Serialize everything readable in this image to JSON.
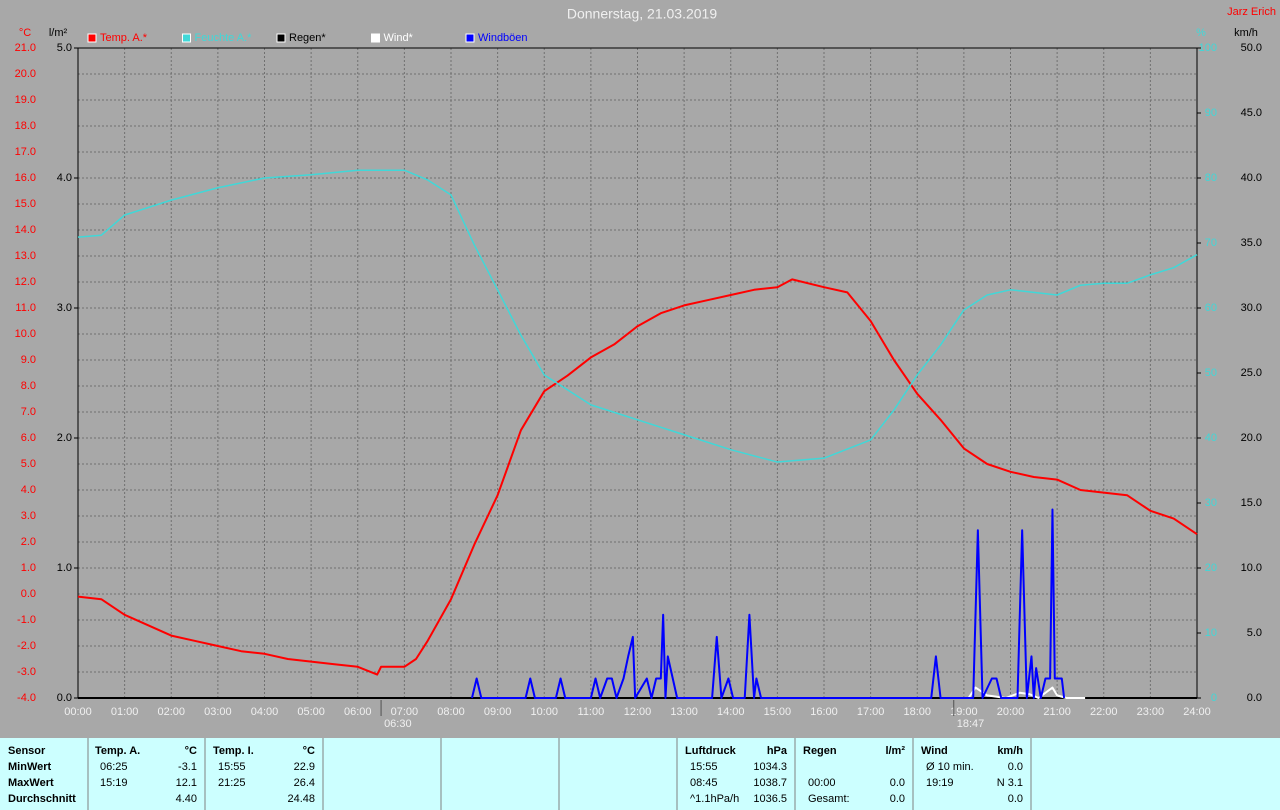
{
  "chart_data": {
    "type": "line",
    "title": "Donnerstag, 21.03.2019",
    "author": "Jarz Erich",
    "y_label": "°C",
    "y2_label": "l/m²",
    "y3_label": "%",
    "y4_label": "km/h",
    "xlim": [
      0,
      24
    ],
    "xticks": [
      {
        "value": 0,
        "label": "00:00"
      },
      {
        "value": 1,
        "label": "01:00"
      },
      {
        "value": 2,
        "label": "02:00"
      },
      {
        "value": 3,
        "label": "03:00"
      },
      {
        "value": 4,
        "label": "04:00"
      },
      {
        "value": 5,
        "label": "05:00"
      },
      {
        "value": 6,
        "label": "06:00"
      },
      {
        "value": 7,
        "label": "07:00"
      },
      {
        "value": 8,
        "label": "08:00"
      },
      {
        "value": 9,
        "label": "09:00"
      },
      {
        "value": 10,
        "label": "10:00"
      },
      {
        "value": 11,
        "label": "11:00"
      },
      {
        "value": 12,
        "label": "12:00"
      },
      {
        "value": 13,
        "label": "13:00"
      },
      {
        "value": 14,
        "label": "14:00"
      },
      {
        "value": 15,
        "label": "15:00"
      },
      {
        "value": 16,
        "label": "16:00"
      },
      {
        "value": 17,
        "label": "17:00"
      },
      {
        "value": 18,
        "label": "18:00"
      },
      {
        "value": 19,
        "label": "19:00"
      },
      {
        "value": 20,
        "label": "20:00"
      },
      {
        "value": 21,
        "label": "21:00"
      },
      {
        "value": 22,
        "label": "22:00"
      },
      {
        "value": 23,
        "label": "23:00"
      },
      {
        "value": 24,
        "label": "24:00"
      }
    ],
    "ylim": [
      -4,
      21
    ],
    "yticks": [
      {
        "value": -4,
        "label": "-4.0"
      },
      {
        "value": -3,
        "label": "-3.0"
      },
      {
        "value": -2,
        "label": "-2.0"
      },
      {
        "value": -1,
        "label": "-1.0"
      },
      {
        "value": 0,
        "label": "0.0"
      },
      {
        "value": 1,
        "label": "1.0"
      },
      {
        "value": 2,
        "label": "2.0"
      },
      {
        "value": 3,
        "label": "3.0"
      },
      {
        "value": 4,
        "label": "4.0"
      },
      {
        "value": 5,
        "label": "5.0"
      },
      {
        "value": 6,
        "label": "6.0"
      },
      {
        "value": 7,
        "label": "7.0"
      },
      {
        "value": 8,
        "label": "8.0"
      },
      {
        "value": 9,
        "label": "9.0"
      },
      {
        "value": 10,
        "label": "10.0"
      },
      {
        "value": 11,
        "label": "11.0"
      },
      {
        "value": 12,
        "label": "12.0"
      },
      {
        "value": 13,
        "label": "13.0"
      },
      {
        "value": 14,
        "label": "14.0"
      },
      {
        "value": 15,
        "label": "15.0"
      },
      {
        "value": 16,
        "label": "16.0"
      },
      {
        "value": 17,
        "label": "17.0"
      },
      {
        "value": 18,
        "label": "18.0"
      },
      {
        "value": 19,
        "label": "19.0"
      },
      {
        "value": 20,
        "label": "20.0"
      },
      {
        "value": 21,
        "label": "21.0"
      }
    ],
    "y2lim": [
      0,
      5
    ],
    "y2ticks": [
      {
        "value": 0,
        "label": "0.0"
      },
      {
        "value": 1,
        "label": "1.0"
      },
      {
        "value": 2,
        "label": "2.0"
      },
      {
        "value": 3,
        "label": "3.0"
      },
      {
        "value": 4,
        "label": "4.0"
      },
      {
        "value": 5,
        "label": "5.0"
      }
    ],
    "y3lim": [
      0,
      100
    ],
    "y3ticks": [
      0,
      10,
      20,
      30,
      40,
      50,
      60,
      70,
      80,
      90,
      100
    ],
    "y4lim": [
      0,
      50
    ],
    "y4ticks": [
      {
        "value": 0,
        "label": "0.0"
      },
      {
        "value": 5,
        "label": "5.0"
      },
      {
        "value": 10,
        "label": "10.0"
      },
      {
        "value": 15,
        "label": "15.0"
      },
      {
        "value": 20,
        "label": "20.0"
      },
      {
        "value": 25,
        "label": "25.0"
      },
      {
        "value": 30,
        "label": "30.0"
      },
      {
        "value": 35,
        "label": "35.0"
      },
      {
        "value": 40,
        "label": "40.0"
      },
      {
        "value": 45,
        "label": "45.0"
      },
      {
        "value": 50,
        "label": "50.0"
      }
    ],
    "grid": true,
    "series": [
      {
        "name": "Temp. A.*",
        "color": "#ff0000",
        "axis": "y",
        "x": [
          0,
          0.5,
          1,
          1.5,
          2,
          2.5,
          3,
          3.5,
          4,
          4.5,
          5,
          5.5,
          6,
          6.417,
          6.5,
          7,
          7.25,
          7.5,
          8,
          8.5,
          9,
          9.5,
          10,
          10.5,
          11,
          11.5,
          12,
          12.5,
          13,
          13.5,
          14,
          14.5,
          15,
          15.317,
          16,
          16.5,
          17,
          17.5,
          18,
          18.5,
          19,
          19.5,
          20,
          20.5,
          21,
          21.5,
          22,
          22.5,
          23,
          23.5,
          24
        ],
        "values": [
          -0.1,
          -0.2,
          -0.8,
          -1.2,
          -1.6,
          -1.8,
          -2.0,
          -2.2,
          -2.3,
          -2.5,
          -2.6,
          -2.7,
          -2.8,
          -3.1,
          -2.8,
          -2.8,
          -2.5,
          -1.8,
          -0.2,
          1.9,
          3.8,
          6.3,
          7.8,
          8.4,
          9.1,
          9.6,
          10.3,
          10.8,
          11.1,
          11.3,
          11.5,
          11.7,
          11.8,
          12.1,
          11.8,
          11.6,
          10.5,
          9.0,
          7.7,
          6.7,
          5.6,
          5.0,
          4.7,
          4.5,
          4.4,
          4.0,
          3.9,
          3.8,
          3.2,
          2.9,
          2.3
        ]
      },
      {
        "name": "Feuchte A.*",
        "color": "#40d8d8",
        "axis": "y3",
        "x": [
          0,
          0.5,
          1,
          2,
          3,
          4,
          5,
          6,
          7,
          7.5,
          8,
          8.5,
          9,
          9.5,
          10,
          10.5,
          11,
          12,
          13,
          14,
          15,
          16,
          17,
          17.5,
          18,
          18.5,
          19,
          19.5,
          20,
          21,
          21.5,
          22,
          22.5,
          23,
          23.5,
          24
        ],
        "values": [
          70.9,
          71.2,
          74.3,
          76.6,
          78.5,
          80.0,
          80.5,
          81.2,
          81.2,
          79.7,
          77.4,
          69.7,
          62.8,
          55.8,
          49.7,
          47.4,
          45.1,
          42.8,
          40.5,
          38.2,
          36.3,
          36.9,
          39.7,
          44.3,
          49.7,
          54.3,
          59.7,
          62.0,
          62.8,
          62.0,
          63.5,
          63.8,
          63.8,
          65.1,
          66.2,
          68.2
        ]
      },
      {
        "name": "Regen*",
        "color": "#000000",
        "axis": "y2",
        "x": [
          0,
          24
        ],
        "values": [
          0.0,
          0.0
        ]
      },
      {
        "name": "Wind*",
        "color": "#ffffff",
        "axis": "y4",
        "x": [
          19.1,
          19.25,
          19.5,
          19.9,
          20.2,
          20.4,
          20.6,
          20.9,
          21.0,
          21.2,
          21.6
        ],
        "values": [
          0,
          0.8,
          0.2,
          0,
          0.4,
          0.3,
          0,
          0.8,
          0.2,
          0,
          0
        ]
      },
      {
        "name": "Windböen",
        "color": "#0000ff",
        "axis": "y4",
        "x": [
          8.45,
          8.55,
          8.65,
          9.6,
          9.7,
          9.8,
          10.25,
          10.35,
          10.45,
          11.0,
          11.1,
          11.2,
          11.35,
          11.45,
          11.55,
          11.7,
          11.8,
          11.9,
          11.95,
          12.2,
          12.3,
          12.4,
          12.5,
          12.55,
          12.6,
          12.65,
          12.85,
          13.6,
          13.7,
          13.8,
          13.95,
          14.05,
          14.3,
          14.4,
          14.5,
          14.55,
          14.65,
          18.3,
          18.4,
          18.5,
          19.2,
          19.3,
          19.4,
          19.6,
          19.7,
          19.8,
          20.15,
          20.25,
          20.35,
          20.45,
          20.5,
          20.55,
          20.65,
          20.75,
          20.85,
          20.9,
          20.95,
          21.1,
          21.15
        ],
        "values": [
          0,
          1.5,
          0,
          0,
          1.5,
          0,
          0,
          1.5,
          0,
          0,
          1.5,
          0,
          1.5,
          1.5,
          0,
          1.5,
          3.2,
          4.7,
          0,
          1.5,
          0,
          1.5,
          1.5,
          6.4,
          0,
          3.2,
          0,
          0,
          4.7,
          0,
          1.5,
          0,
          0,
          6.4,
          0,
          1.5,
          0,
          0,
          3.2,
          0,
          0,
          12.9,
          0,
          1.5,
          1.5,
          0,
          0,
          12.9,
          0,
          3.2,
          0,
          2.3,
          0,
          1.5,
          1.5,
          14.5,
          1.5,
          1.5,
          0
        ]
      }
    ],
    "annotations": [
      {
        "x": 6.5,
        "label": "06:30"
      },
      {
        "x": 18.783,
        "label": "18:47"
      }
    ]
  },
  "table": {
    "sensor": {
      "header": "Sensor",
      "rows": [
        "MinWert",
        "MaxWert",
        "Durchschnitt"
      ]
    },
    "groups": [
      {
        "header": "Temp. A.",
        "unit": "°C",
        "rows": [
          {
            "time": "06:25",
            "value": "-3.1"
          },
          {
            "time": "15:19",
            "value": "12.1"
          },
          {
            "value": "4.40"
          }
        ]
      },
      {
        "header": "Temp. I.",
        "unit": "°C",
        "rows": [
          {
            "time": "15:55",
            "value": "22.9"
          },
          {
            "time": "21:25",
            "value": "26.4"
          },
          {
            "value": "24.48"
          }
        ]
      },
      {
        "header": "Luftdruck",
        "unit": "hPa",
        "rows": [
          {
            "time": "15:55",
            "value": "1034.3"
          },
          {
            "time": "08:45",
            "value": "1038.7"
          },
          {
            "time": "^1.1hPa/h",
            "value": "1036.5"
          }
        ]
      },
      {
        "header": "Regen",
        "unit": "l/m²",
        "rows": [
          null,
          {
            "time": "00:00",
            "value": "0.0"
          },
          {
            "time": "Gesamt:",
            "value": "0.0"
          }
        ]
      },
      {
        "header": "Wind",
        "unit": "km/h",
        "rows": [
          {
            "time": "Ø 10 min.",
            "value": "0.0"
          },
          {
            "time": "19:19",
            "value": "N 3.1"
          },
          {
            "value": "0.0"
          }
        ]
      }
    ]
  }
}
